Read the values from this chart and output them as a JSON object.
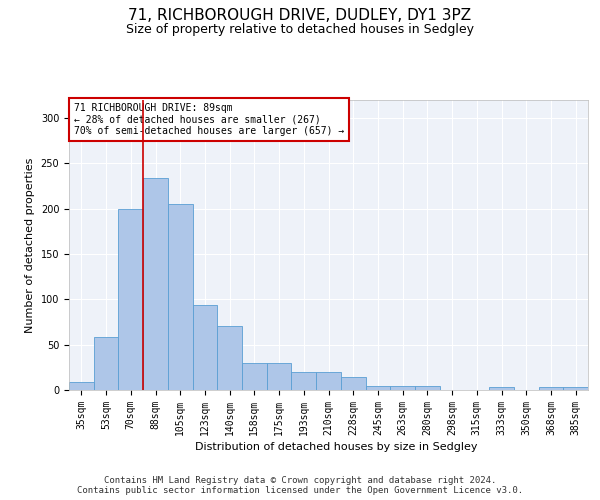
{
  "title": "71, RICHBOROUGH DRIVE, DUDLEY, DY1 3PZ",
  "subtitle": "Size of property relative to detached houses in Sedgley",
  "xlabel": "Distribution of detached houses by size in Sedgley",
  "ylabel": "Number of detached properties",
  "categories": [
    "35sqm",
    "53sqm",
    "70sqm",
    "88sqm",
    "105sqm",
    "123sqm",
    "140sqm",
    "158sqm",
    "175sqm",
    "193sqm",
    "210sqm",
    "228sqm",
    "245sqm",
    "263sqm",
    "280sqm",
    "298sqm",
    "315sqm",
    "333sqm",
    "350sqm",
    "368sqm",
    "385sqm"
  ],
  "values": [
    9,
    58,
    200,
    234,
    205,
    94,
    71,
    30,
    30,
    20,
    20,
    14,
    4,
    4,
    4,
    0,
    0,
    3,
    0,
    3,
    3
  ],
  "bar_color": "#aec6e8",
  "bar_edge_color": "#5a9fd4",
  "vline_color": "#cc0000",
  "vline_index": 3,
  "annotation_text": "71 RICHBOROUGH DRIVE: 89sqm\n← 28% of detached houses are smaller (267)\n70% of semi-detached houses are larger (657) →",
  "annotation_box_color": "#ffffff",
  "annotation_box_edge": "#cc0000",
  "ylim": [
    0,
    320
  ],
  "yticks": [
    0,
    50,
    100,
    150,
    200,
    250,
    300
  ],
  "footer_text": "Contains HM Land Registry data © Crown copyright and database right 2024.\nContains public sector information licensed under the Open Government Licence v3.0.",
  "bg_color": "#eef2f9",
  "grid_color": "#ffffff",
  "title_fontsize": 11,
  "subtitle_fontsize": 9,
  "axis_label_fontsize": 8,
  "tick_fontsize": 7,
  "annotation_fontsize": 7,
  "footer_fontsize": 6.5
}
